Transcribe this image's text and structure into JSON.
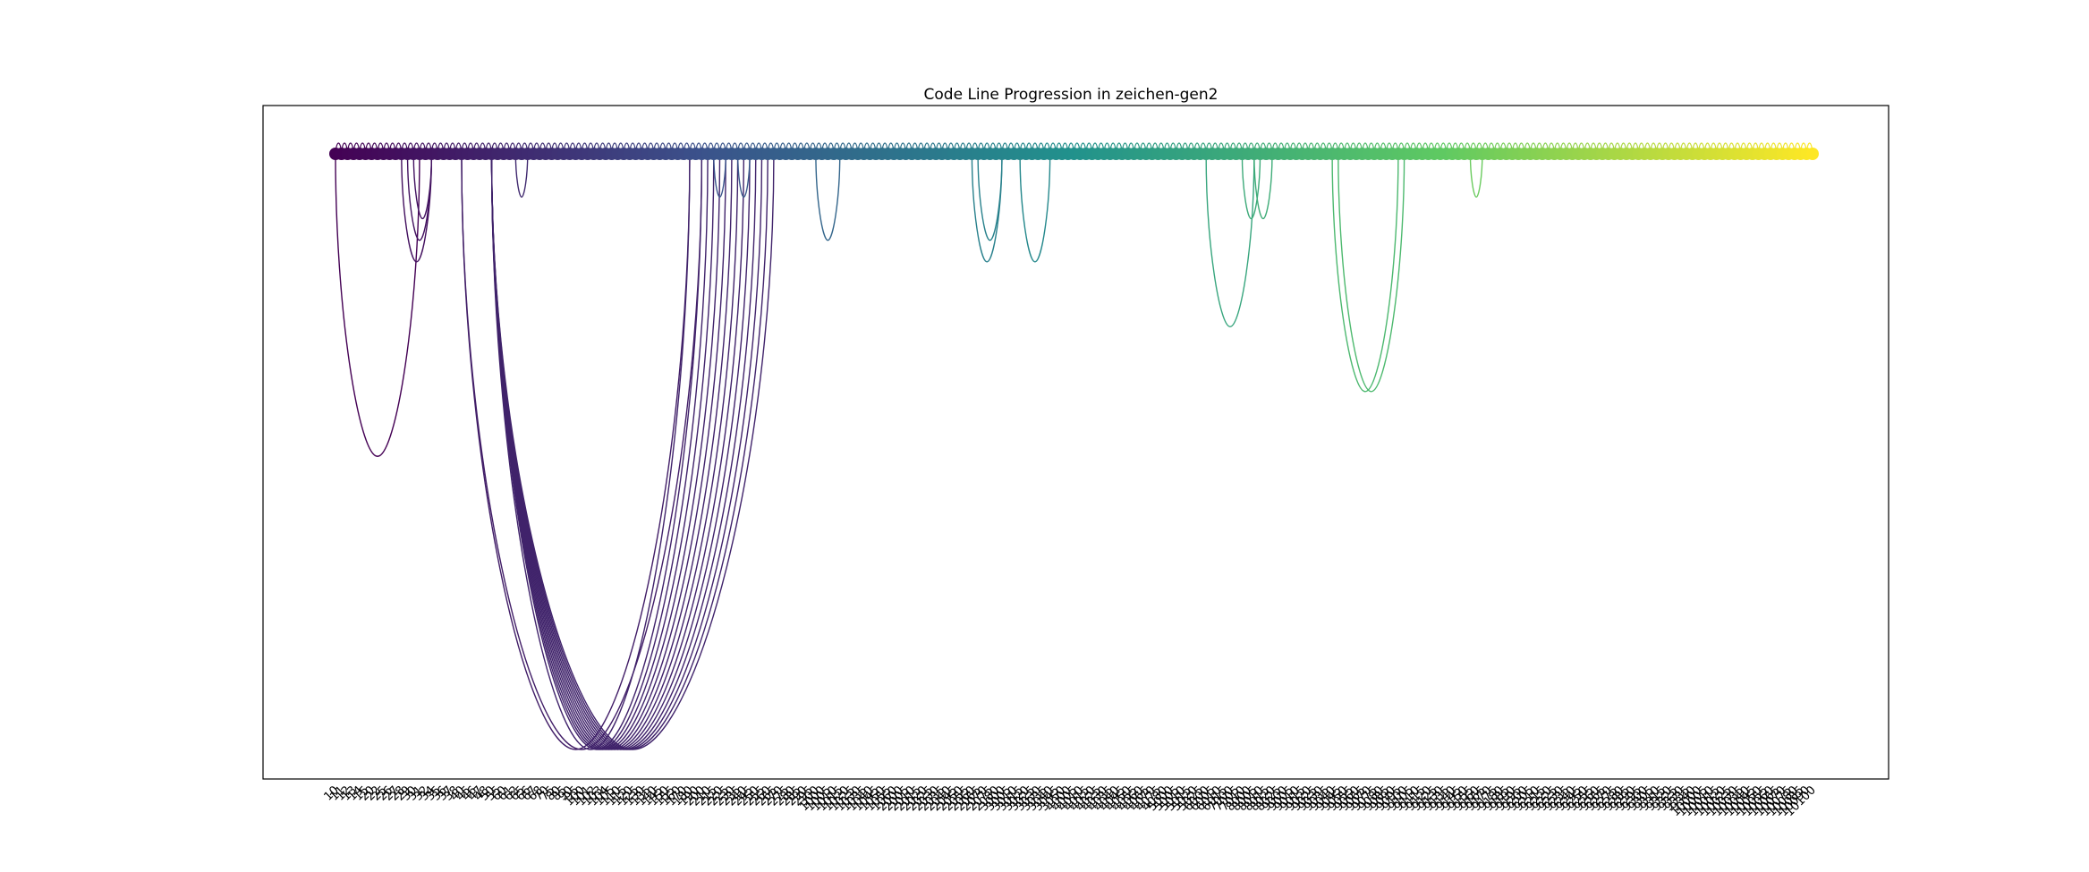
{
  "chart_data": {
    "type": "arc",
    "title": "Code Line Progression in zeichen-gen2",
    "xlabel": "",
    "ylabel": "",
    "grid": false,
    "legend": "none",
    "colormap": "viridis",
    "colors": [
      "#440154",
      "#3b528b",
      "#21918c",
      "#5ec962",
      "#fde725"
    ],
    "tick_labels": [
      "10",
      "11",
      "12",
      "13",
      "14",
      "15",
      "20",
      "22",
      "25",
      "26",
      "27",
      "28",
      "29",
      "30",
      "31",
      "32",
      "34",
      "35",
      "36",
      "37",
      "38",
      "40",
      "45",
      "46",
      "47",
      "48",
      "50",
      "55",
      "60",
      "61",
      "62",
      "65",
      "66",
      "67",
      "68",
      "70",
      "75",
      "80",
      "85",
      "90",
      "95",
      "100",
      "101",
      "102",
      "103",
      "104",
      "105",
      "110",
      "115",
      "120",
      "125",
      "130",
      "135",
      "140",
      "145",
      "150",
      "155",
      "160",
      "170",
      "180",
      "190",
      "200",
      "210",
      "215",
      "220",
      "225",
      "230",
      "235",
      "240",
      "245",
      "250",
      "255",
      "260",
      "265",
      "270",
      "275",
      "280",
      "285",
      "290",
      "295",
      "300",
      "1000",
      "1005",
      "1010",
      "1015",
      "1020",
      "1025",
      "1030",
      "1035",
      "1040",
      "1045",
      "1050",
      "1055",
      "1060",
      "2000",
      "2005",
      "2010",
      "2015",
      "2020",
      "2025",
      "2030",
      "2035",
      "2040",
      "2045",
      "2050",
      "2055",
      "2060",
      "2065",
      "2070",
      "2075",
      "2080",
      "3000",
      "3005",
      "3010",
      "3015",
      "3020",
      "3025",
      "3030",
      "3035",
      "3040",
      "3045",
      "3050",
      "4000",
      "4005",
      "4010",
      "4015",
      "4020",
      "4025",
      "4030",
      "4035",
      "4040",
      "4045",
      "4050",
      "4055",
      "4060",
      "4065",
      "4070",
      "4075",
      "4080",
      "5000",
      "5005",
      "5010",
      "5015",
      "5020",
      "5025",
      "6000",
      "6005",
      "6010",
      "6015",
      "7000",
      "7005",
      "7010",
      "8000",
      "8005",
      "8010",
      "8015",
      "8020",
      "8025",
      "9000",
      "9005",
      "9010",
      "9015",
      "9020",
      "9025",
      "9030",
      "9035",
      "9040",
      "9045",
      "9050",
      "9055",
      "9060",
      "9065",
      "9070",
      "9075",
      "9080",
      "9085",
      "9090",
      "9095",
      "9100",
      "9105",
      "9110",
      "9115",
      "9120",
      "9125",
      "9130",
      "9135",
      "9140",
      "9145",
      "9150",
      "9155",
      "9160",
      "9165",
      "9170",
      "9175",
      "9180",
      "9185",
      "9190",
      "9195",
      "9200",
      "9205",
      "9210",
      "9215",
      "9220",
      "9225",
      "9230",
      "9235",
      "9240",
      "9245",
      "9250",
      "9255",
      "9260",
      "9265",
      "9270",
      "9275",
      "9280",
      "9285",
      "9290",
      "9295",
      "9300",
      "9305",
      "9310",
      "9315",
      "9320",
      "9325",
      "9330",
      "9335",
      "9340",
      "10000",
      "10005",
      "10010",
      "10015",
      "10020",
      "10025",
      "10030",
      "10035",
      "10040",
      "10045",
      "10050",
      "10055",
      "10060",
      "10065",
      "10070",
      "10075",
      "10080",
      "10085",
      "10090",
      "10100"
    ],
    "long_arcs": [
      {
        "from": 0,
        "to": 14
      },
      {
        "from": 11,
        "to": 16
      },
      {
        "from": 12,
        "to": 16
      },
      {
        "from": 13,
        "to": 16
      },
      {
        "from": 21,
        "to": 59
      },
      {
        "from": 21,
        "to": 61
      },
      {
        "from": 26,
        "to": 59
      },
      {
        "from": 26,
        "to": 61
      },
      {
        "from": 26,
        "to": 62
      },
      {
        "from": 26,
        "to": 63
      },
      {
        "from": 26,
        "to": 64
      },
      {
        "from": 26,
        "to": 65
      },
      {
        "from": 26,
        "to": 66
      },
      {
        "from": 26,
        "to": 67
      },
      {
        "from": 26,
        "to": 68
      },
      {
        "from": 26,
        "to": 69
      },
      {
        "from": 26,
        "to": 70
      },
      {
        "from": 26,
        "to": 71
      },
      {
        "from": 26,
        "to": 72
      },
      {
        "from": 26,
        "to": 73
      },
      {
        "from": 30,
        "to": 32
      },
      {
        "from": 63,
        "to": 65
      },
      {
        "from": 67,
        "to": 69
      },
      {
        "from": 80,
        "to": 84
      },
      {
        "from": 106,
        "to": 111
      },
      {
        "from": 107,
        "to": 111
      },
      {
        "from": 114,
        "to": 119
      },
      {
        "from": 145,
        "to": 153
      },
      {
        "from": 151,
        "to": 154
      },
      {
        "from": 153,
        "to": 156
      },
      {
        "from": 166,
        "to": 177
      },
      {
        "from": 167,
        "to": 178
      },
      {
        "from": 189,
        "to": 191
      }
    ]
  }
}
